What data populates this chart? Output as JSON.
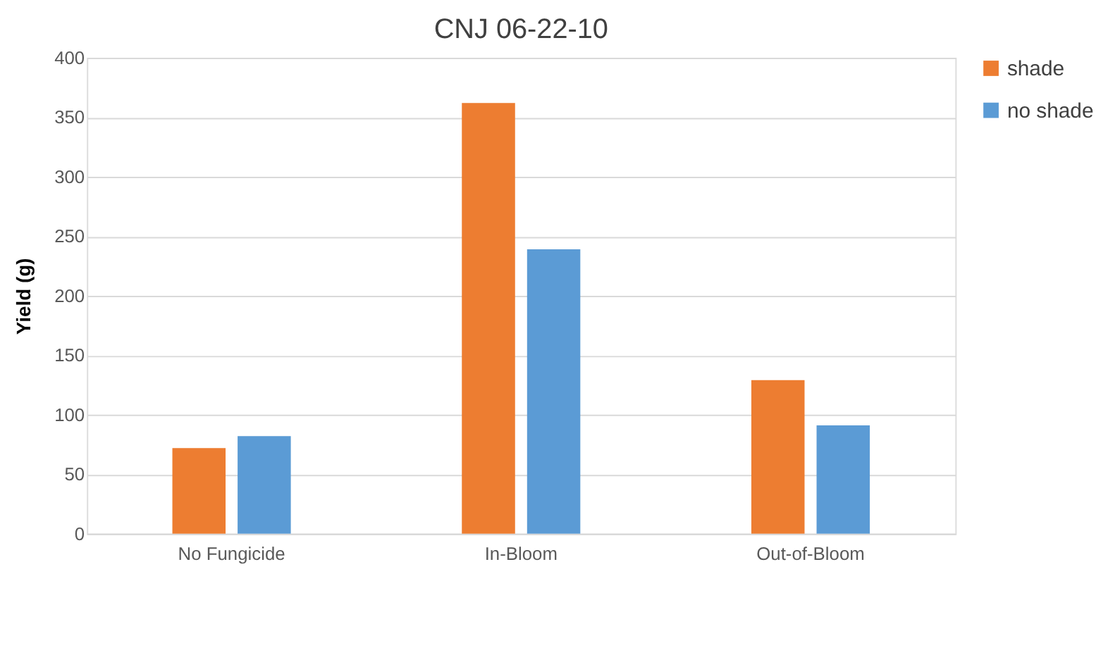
{
  "chart_data": {
    "type": "bar",
    "title": "CNJ 06-22-10",
    "ylabel": "Yield (g)",
    "categories": [
      "No Fungicide",
      "In-Bloom",
      "Out-of-Bloom"
    ],
    "series": [
      {
        "name": "shade",
        "color": "#ed7d31",
        "values": [
          72,
          362,
          129
        ]
      },
      {
        "name": "no shade",
        "color": "#5b9bd5",
        "values": [
          82,
          239,
          91
        ]
      }
    ],
    "ylim": [
      0,
      400
    ],
    "yticks": [
      0,
      50,
      100,
      150,
      200,
      250,
      300,
      350,
      400
    ],
    "grid": "y",
    "legend": "right"
  }
}
